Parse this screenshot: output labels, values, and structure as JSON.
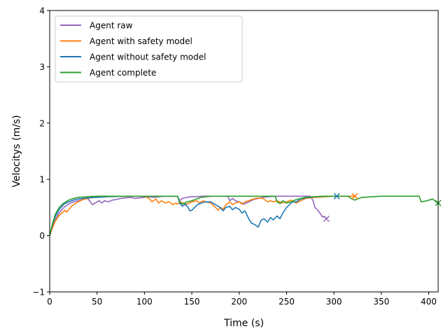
{
  "chart_data": {
    "type": "line",
    "xlabel": "Time (s)",
    "ylabel": "Velocitys (m/s)",
    "xlim": [
      0,
      410
    ],
    "ylim": [
      -1,
      4
    ],
    "xticks": [
      0,
      50,
      100,
      150,
      200,
      250,
      300,
      350,
      400
    ],
    "yticks": [
      -1,
      0,
      1,
      2,
      3,
      4
    ],
    "grid": false,
    "legend_position": "top-left",
    "series": [
      {
        "name": "Agent raw",
        "color": "#9467bd",
        "end_marker": "x",
        "x": [
          0,
          3,
          6,
          10,
          15,
          20,
          25,
          30,
          35,
          40,
          42,
          45,
          48,
          52,
          55,
          58,
          62,
          66,
          70,
          75,
          80,
          85,
          90,
          95,
          100,
          105,
          110,
          115,
          120,
          125,
          130,
          135,
          137,
          140,
          145,
          150,
          155,
          160,
          170,
          180,
          188,
          190,
          193,
          196,
          200,
          205,
          210,
          215,
          220,
          225,
          230,
          240,
          250,
          260,
          270,
          275,
          278,
          280,
          283,
          286,
          288,
          290,
          292
        ],
        "y": [
          0,
          0.15,
          0.28,
          0.4,
          0.5,
          0.56,
          0.6,
          0.62,
          0.64,
          0.66,
          0.62,
          0.55,
          0.58,
          0.62,
          0.58,
          0.62,
          0.6,
          0.63,
          0.64,
          0.66,
          0.67,
          0.68,
          0.66,
          0.67,
          0.68,
          0.69,
          0.68,
          0.69,
          0.7,
          0.7,
          0.7,
          0.7,
          0.62,
          0.66,
          0.68,
          0.69,
          0.69,
          0.7,
          0.7,
          0.7,
          0.7,
          0.62,
          0.66,
          0.62,
          0.6,
          0.56,
          0.6,
          0.64,
          0.66,
          0.68,
          0.69,
          0.7,
          0.7,
          0.7,
          0.7,
          0.7,
          0.62,
          0.5,
          0.45,
          0.38,
          0.33,
          0.34,
          0.3
        ]
      },
      {
        "name": "Agent with safety model",
        "color": "#ff7f0e",
        "end_marker": "x",
        "x": [
          0,
          3,
          6,
          10,
          13,
          16,
          18,
          20,
          23,
          26,
          30,
          35,
          40,
          45,
          50,
          55,
          60,
          70,
          80,
          90,
          100,
          105,
          108,
          112,
          115,
          118,
          122,
          126,
          130,
          133,
          135,
          138,
          140,
          145,
          150,
          155,
          158,
          162,
          165,
          170,
          175,
          178,
          180,
          183,
          186,
          190,
          193,
          196,
          200,
          203,
          206,
          210,
          215,
          220,
          225,
          230,
          233,
          236,
          240,
          245,
          250,
          255,
          260,
          265,
          270,
          280,
          290,
          300,
          310,
          315,
          320,
          322
        ],
        "y": [
          0,
          0.14,
          0.26,
          0.36,
          0.4,
          0.45,
          0.42,
          0.46,
          0.52,
          0.56,
          0.6,
          0.64,
          0.66,
          0.68,
          0.69,
          0.69,
          0.7,
          0.7,
          0.7,
          0.7,
          0.7,
          0.66,
          0.6,
          0.65,
          0.58,
          0.62,
          0.58,
          0.6,
          0.55,
          0.58,
          0.56,
          0.6,
          0.58,
          0.56,
          0.6,
          0.62,
          0.58,
          0.62,
          0.6,
          0.58,
          0.5,
          0.45,
          0.5,
          0.47,
          0.55,
          0.6,
          0.55,
          0.58,
          0.6,
          0.56,
          0.6,
          0.62,
          0.65,
          0.67,
          0.66,
          0.6,
          0.62,
          0.6,
          0.62,
          0.58,
          0.6,
          0.63,
          0.58,
          0.62,
          0.66,
          0.68,
          0.69,
          0.7,
          0.7,
          0.7,
          0.7,
          0.7
        ]
      },
      {
        "name": "Agent without safety model",
        "color": "#1f77b4",
        "end_marker": "x",
        "x": [
          0,
          3,
          6,
          10,
          15,
          20,
          25,
          30,
          40,
          50,
          60,
          80,
          100,
          120,
          135,
          137,
          140,
          143,
          146,
          148,
          150,
          153,
          156,
          160,
          165,
          170,
          175,
          180,
          183,
          186,
          190,
          193,
          196,
          200,
          203,
          206,
          210,
          213,
          216,
          220,
          223,
          226,
          230,
          233,
          236,
          240,
          243,
          246,
          250,
          253,
          256,
          260,
          265,
          270,
          280,
          290,
          300,
          303
        ],
        "y": [
          0,
          0.2,
          0.34,
          0.46,
          0.56,
          0.6,
          0.63,
          0.65,
          0.67,
          0.68,
          0.69,
          0.7,
          0.7,
          0.7,
          0.7,
          0.58,
          0.52,
          0.56,
          0.5,
          0.44,
          0.45,
          0.5,
          0.55,
          0.58,
          0.6,
          0.6,
          0.55,
          0.5,
          0.44,
          0.5,
          0.52,
          0.46,
          0.5,
          0.47,
          0.4,
          0.44,
          0.3,
          0.22,
          0.2,
          0.15,
          0.27,
          0.3,
          0.24,
          0.32,
          0.28,
          0.35,
          0.3,
          0.4,
          0.5,
          0.55,
          0.6,
          0.6,
          0.65,
          0.67,
          0.69,
          0.7,
          0.7,
          0.7
        ]
      },
      {
        "name": "Agent complete",
        "color": "#2ca02c",
        "end_marker": "x",
        "x": [
          0,
          3,
          6,
          10,
          15,
          20,
          25,
          30,
          40,
          50,
          60,
          80,
          100,
          120,
          135,
          137,
          140,
          145,
          150,
          155,
          160,
          170,
          180,
          190,
          200,
          210,
          220,
          230,
          238,
          240,
          243,
          246,
          250,
          255,
          260,
          265,
          270,
          280,
          290,
          300,
          310,
          315,
          318,
          322,
          326,
          330,
          340,
          350,
          360,
          370,
          380,
          390,
          392,
          398,
          404,
          408,
          410
        ],
        "y": [
          0,
          0.22,
          0.38,
          0.5,
          0.58,
          0.63,
          0.66,
          0.68,
          0.69,
          0.7,
          0.7,
          0.7,
          0.7,
          0.7,
          0.7,
          0.6,
          0.56,
          0.6,
          0.62,
          0.65,
          0.68,
          0.7,
          0.7,
          0.7,
          0.7,
          0.7,
          0.7,
          0.7,
          0.7,
          0.6,
          0.57,
          0.62,
          0.58,
          0.6,
          0.64,
          0.66,
          0.68,
          0.69,
          0.7,
          0.7,
          0.7,
          0.7,
          0.66,
          0.63,
          0.66,
          0.68,
          0.69,
          0.7,
          0.7,
          0.7,
          0.7,
          0.7,
          0.6,
          0.62,
          0.65,
          0.6,
          0.58
        ]
      }
    ]
  }
}
